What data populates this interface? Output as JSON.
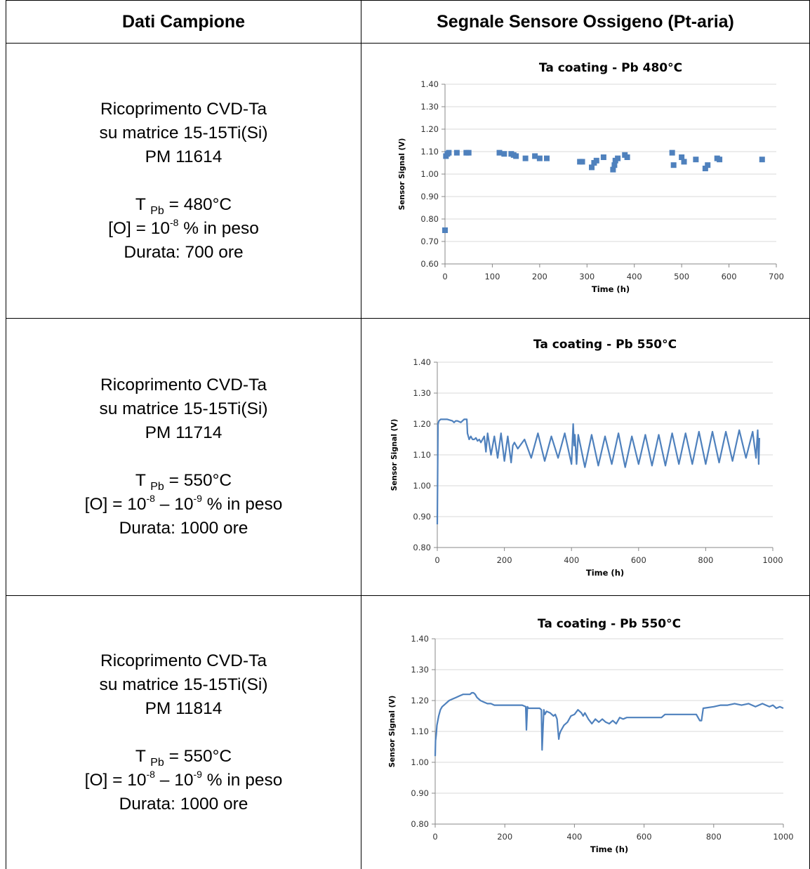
{
  "headers": {
    "left": "Dati Campione",
    "right": "Segnale Sensore Ossigeno (Pt-aria)"
  },
  "rows": [
    {
      "sample_lines": [
        "Ricoprimento CVD-Ta",
        "su matrice 15-15Ti(Si)",
        "PM 11614"
      ],
      "temp": {
        "prefix": "T ",
        "sub": "Pb",
        "value": " = 480°C"
      },
      "oxygen": {
        "pre": "[O] = 10",
        "exp1": "-8",
        "mid": "",
        "exp2": "",
        "post": " % in peso"
      },
      "duration": "Durata: 700 ore"
    },
    {
      "sample_lines": [
        "Ricoprimento CVD-Ta",
        "su matrice 15-15Ti(Si)",
        "PM 11714"
      ],
      "temp": {
        "prefix": "T ",
        "sub": "Pb",
        "value": " = 550°C"
      },
      "oxygen": {
        "pre": "[O] = 10",
        "exp1": "-8",
        "mid": " – 10",
        "exp2": "-9",
        "post": " % in peso"
      },
      "duration": "Durata: 1000 ore"
    },
    {
      "sample_lines": [
        "Ricoprimento CVD-Ta",
        "su matrice 15-15Ti(Si)",
        "PM 11814"
      ],
      "temp": {
        "prefix": "T ",
        "sub": "Pb",
        "value": " = 550°C"
      },
      "oxygen": {
        "pre": "[O] = 10",
        "exp1": "-8",
        "mid": " – 10",
        "exp2": "-9",
        "post": " % in peso"
      },
      "duration": "Durata: 1000 ore"
    }
  ],
  "chart_data": [
    {
      "type": "scatter",
      "title": "Ta coating - Pb 480°C",
      "xlabel": "Time (h)",
      "ylabel": "Sensor Signal (V)",
      "xlim": [
        0,
        700
      ],
      "ylim": [
        0.6,
        1.4
      ],
      "xticks": [
        0,
        100,
        200,
        300,
        400,
        500,
        600,
        700
      ],
      "yticks": [
        "0.60",
        "0.70",
        "0.80",
        "0.90",
        "1.00",
        "1.10",
        "1.20",
        "1.30",
        "1.40"
      ],
      "grid": true,
      "color": "#4f81bd",
      "x": [
        0,
        2,
        5,
        8,
        25,
        45,
        50,
        115,
        125,
        140,
        145,
        150,
        170,
        190,
        200,
        215,
        285,
        290,
        310,
        315,
        320,
        335,
        355,
        358,
        360,
        365,
        380,
        385,
        480,
        483,
        500,
        505,
        530,
        550,
        555,
        575,
        580,
        670
      ],
      "y": [
        0.75,
        1.08,
        1.09,
        1.095,
        1.095,
        1.095,
        1.095,
        1.095,
        1.09,
        1.09,
        1.085,
        1.08,
        1.07,
        1.08,
        1.07,
        1.07,
        1.055,
        1.055,
        1.03,
        1.05,
        1.06,
        1.075,
        1.02,
        1.04,
        1.06,
        1.07,
        1.085,
        1.075,
        1.095,
        1.04,
        1.075,
        1.055,
        1.065,
        1.025,
        1.04,
        1.07,
        1.065,
        1.065
      ]
    },
    {
      "type": "line",
      "title": "Ta coating - Pb 550°C",
      "xlabel": "Time (h)",
      "ylabel": "Sensor Signal (V)",
      "xlim": [
        0,
        1000
      ],
      "ylim": [
        0.8,
        1.4
      ],
      "xticks": [
        0,
        200,
        400,
        600,
        800,
        1000
      ],
      "yticks": [
        "0.80",
        "0.90",
        "1.00",
        "1.10",
        "1.20",
        "1.30",
        "1.40"
      ],
      "grid": true,
      "color": "#4f81bd",
      "x": [
        0,
        2,
        5,
        10,
        15,
        30,
        45,
        50,
        55,
        60,
        70,
        80,
        88,
        90,
        95,
        100,
        105,
        110,
        115,
        120,
        125,
        130,
        140,
        145,
        150,
        160,
        170,
        180,
        190,
        200,
        210,
        220,
        225,
        230,
        240,
        260,
        280,
        300,
        320,
        340,
        360,
        380,
        400,
        405,
        408,
        410,
        415,
        420,
        440,
        460,
        480,
        500,
        520,
        540,
        560,
        580,
        600,
        620,
        640,
        660,
        680,
        700,
        720,
        740,
        760,
        780,
        800,
        820,
        840,
        860,
        880,
        900,
        920,
        940,
        950,
        955,
        958,
        960
      ],
      "y": [
        0.875,
        1.2,
        1.21,
        1.215,
        1.215,
        1.215,
        1.21,
        1.205,
        1.21,
        1.21,
        1.205,
        1.215,
        1.215,
        1.17,
        1.15,
        1.16,
        1.15,
        1.15,
        1.155,
        1.145,
        1.15,
        1.14,
        1.16,
        1.11,
        1.17,
        1.1,
        1.16,
        1.09,
        1.17,
        1.08,
        1.16,
        1.075,
        1.13,
        1.14,
        1.12,
        1.15,
        1.09,
        1.17,
        1.08,
        1.16,
        1.09,
        1.17,
        1.07,
        1.2,
        1.13,
        1.165,
        1.07,
        1.165,
        1.06,
        1.165,
        1.065,
        1.16,
        1.07,
        1.17,
        1.06,
        1.16,
        1.07,
        1.165,
        1.065,
        1.165,
        1.065,
        1.17,
        1.07,
        1.17,
        1.07,
        1.175,
        1.07,
        1.175,
        1.075,
        1.175,
        1.08,
        1.18,
        1.09,
        1.175,
        1.09,
        1.18,
        1.07,
        1.155
      ]
    },
    {
      "type": "line",
      "title": "Ta coating - Pb 550°C",
      "xlabel": "Time (h)",
      "ylabel": "Sensor Signal (V)",
      "xlim": [
        0,
        1000
      ],
      "ylim": [
        0.8,
        1.4
      ],
      "xticks": [
        0,
        200,
        400,
        600,
        800,
        1000
      ],
      "yticks": [
        "0.80",
        "0.90",
        "1.00",
        "1.10",
        "1.20",
        "1.30",
        "1.40"
      ],
      "grid": true,
      "color": "#4f81bd",
      "x": [
        0,
        1,
        3,
        5,
        10,
        15,
        20,
        30,
        40,
        50,
        60,
        70,
        80,
        90,
        100,
        105,
        110,
        115,
        120,
        130,
        140,
        150,
        160,
        170,
        190,
        200,
        250,
        260,
        262,
        265,
        268,
        270,
        300,
        305,
        307,
        310,
        312,
        315,
        320,
        330,
        340,
        345,
        350,
        355,
        357,
        360,
        365,
        370,
        380,
        390,
        400,
        410,
        420,
        425,
        430,
        440,
        450,
        460,
        470,
        480,
        490,
        500,
        510,
        520,
        530,
        540,
        550,
        600,
        650,
        660,
        700,
        740,
        750,
        760,
        765,
        770,
        800,
        820,
        840,
        860,
        880,
        900,
        920,
        940,
        950,
        960,
        970,
        980,
        990,
        1000
      ],
      "y": [
        1.02,
        1.07,
        1.09,
        1.12,
        1.15,
        1.17,
        1.18,
        1.19,
        1.2,
        1.205,
        1.21,
        1.215,
        1.22,
        1.22,
        1.22,
        1.225,
        1.225,
        1.22,
        1.21,
        1.2,
        1.195,
        1.19,
        1.19,
        1.185,
        1.185,
        1.185,
        1.185,
        1.18,
        1.105,
        1.18,
        1.175,
        1.175,
        1.175,
        1.17,
        1.04,
        1.12,
        1.17,
        1.155,
        1.165,
        1.16,
        1.15,
        1.155,
        1.14,
        1.075,
        1.09,
        1.1,
        1.11,
        1.12,
        1.13,
        1.15,
        1.155,
        1.17,
        1.16,
        1.15,
        1.16,
        1.14,
        1.125,
        1.14,
        1.13,
        1.14,
        1.13,
        1.125,
        1.135,
        1.125,
        1.145,
        1.14,
        1.145,
        1.145,
        1.145,
        1.155,
        1.155,
        1.155,
        1.155,
        1.135,
        1.135,
        1.175,
        1.18,
        1.185,
        1.185,
        1.19,
        1.185,
        1.19,
        1.18,
        1.19,
        1.185,
        1.18,
        1.185,
        1.175,
        1.18,
        1.175
      ]
    }
  ]
}
